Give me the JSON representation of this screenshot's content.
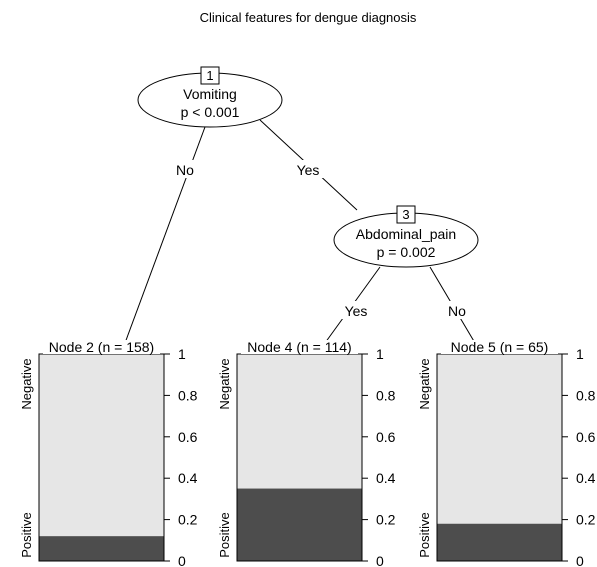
{
  "title": "Clinical features for dengue diagnosis",
  "inner_nodes": [
    {
      "id": "1",
      "variable": "Vomiting",
      "pvalue": "p < 0.001"
    },
    {
      "id": "3",
      "variable": "Abdominal_pain",
      "pvalue": "p = 0.002"
    }
  ],
  "edge_labels": {
    "node1_left": "No",
    "node1_right": "Yes",
    "node3_left": "Yes",
    "node3_right": "No"
  },
  "chart_data": {
    "type": "bar",
    "categories": [
      "Node 2 (n = 158)",
      "Node 4 (n = 114)",
      "Node 5 (n = 65)"
    ],
    "category_labels": [
      "Negative",
      "Positive"
    ],
    "series": [
      {
        "name": "Positive",
        "values": [
          0.12,
          0.35,
          0.18
        ],
        "color": "#4d4d4d"
      },
      {
        "name": "Negative",
        "values": [
          0.88,
          0.65,
          0.82
        ],
        "color": "#e6e6e6"
      }
    ],
    "yticks": [
      "0",
      "0.2",
      "0.4",
      "0.6",
      "0.8",
      "1"
    ],
    "ylim": [
      0,
      1
    ]
  }
}
